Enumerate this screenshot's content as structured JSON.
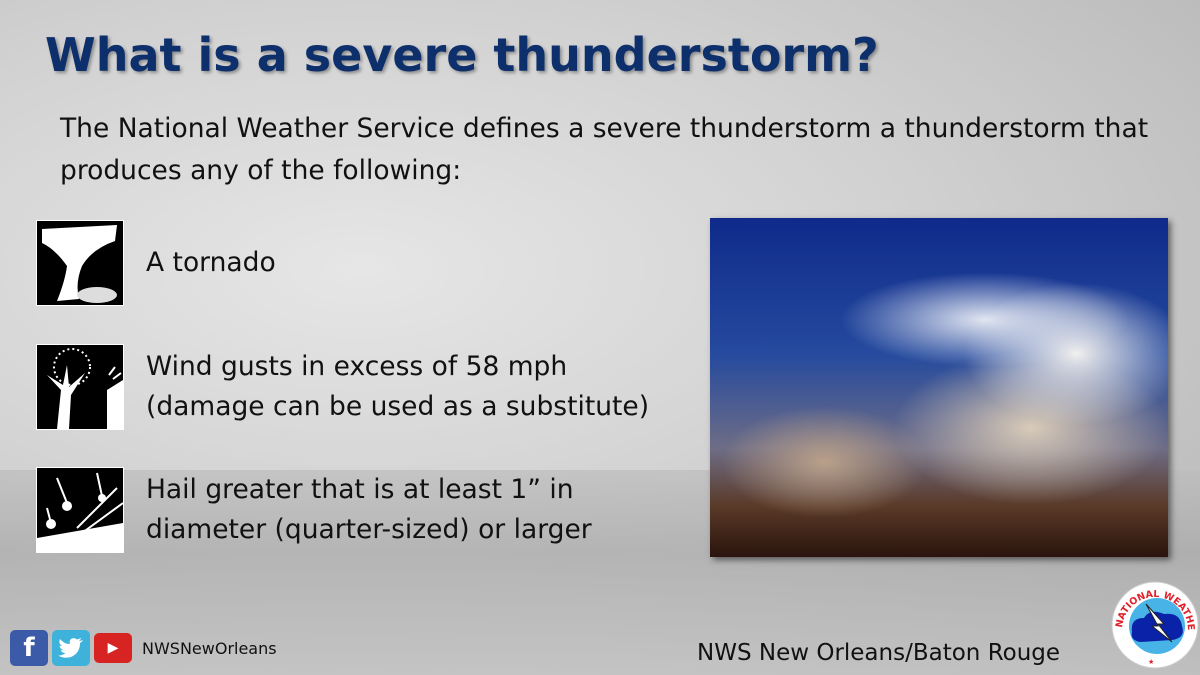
{
  "slide": {
    "title": "What is a severe thunderstorm?",
    "intro": "The National Weather Service defines a severe thunderstorm a thunderstorm that produces any of the following:",
    "items": [
      {
        "icon": "tornado-icon",
        "lines": [
          "A tornado"
        ]
      },
      {
        "icon": "wind-tree-icon",
        "lines": [
          "Wind gusts in excess of 58 mph",
          "(damage can be used as a substitute)"
        ]
      },
      {
        "icon": "hail-icon",
        "lines": [
          "Hail greater that is at least 1” in",
          "diameter (quarter-sized)  or larger"
        ]
      }
    ]
  },
  "social": {
    "facebook": "f",
    "youtube": "▶",
    "handle": "NWSNewOrleans"
  },
  "footer": {
    "office": "NWS New Orleans/Baton Rouge"
  },
  "logo": {
    "text": "NATIONAL WEATHER SERVICE"
  },
  "colors": {
    "title": "#0d2f6b",
    "facebook": "#3b5ba8",
    "twitter": "#3fb2dc",
    "youtube": "#d82323",
    "logo_red": "#e0202a"
  }
}
